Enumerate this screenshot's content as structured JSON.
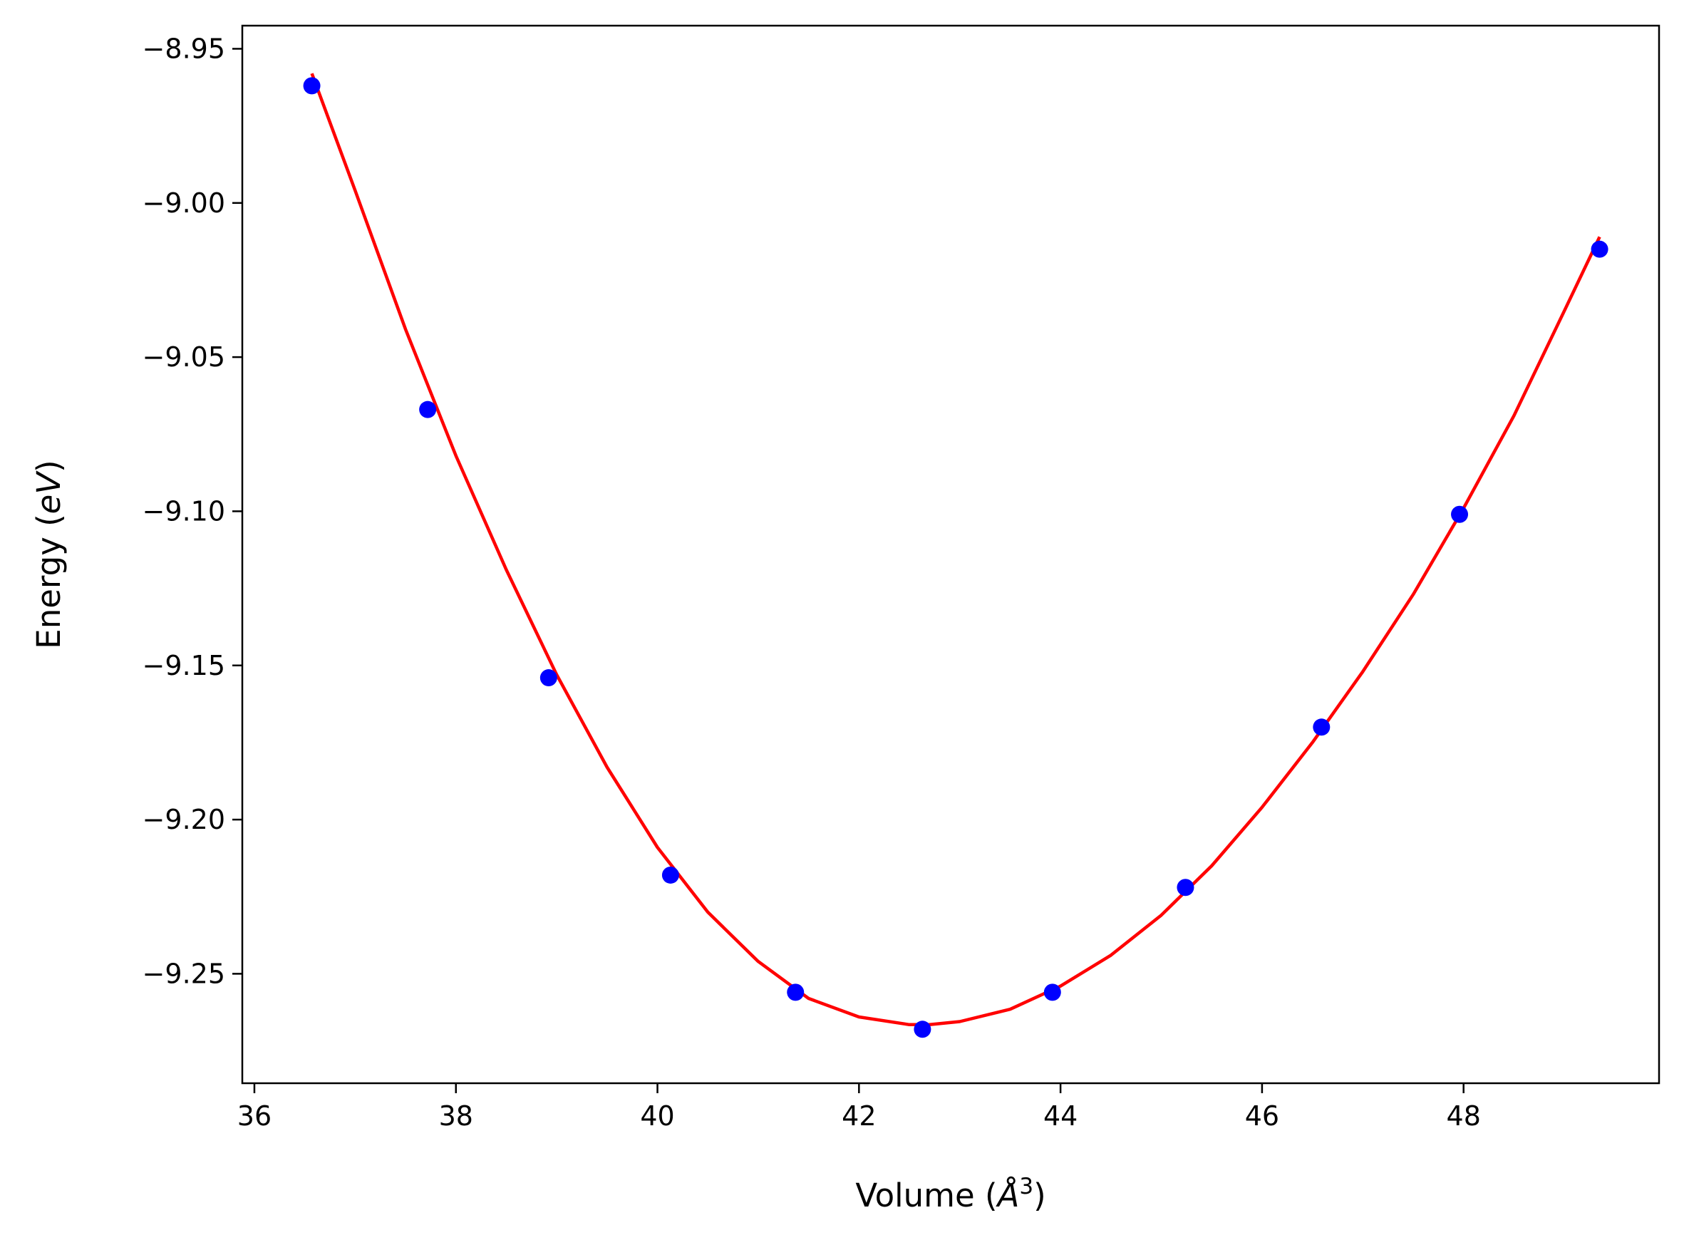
{
  "chart_data": {
    "type": "scatter",
    "title": "",
    "xlabel": {
      "prefix": "Volume (",
      "italic": "Å",
      "sup": "3",
      "suffix": ")"
    },
    "ylabel": {
      "prefix": "Energy (",
      "italic": "eV",
      "suffix": ")"
    },
    "xlim": [
      35.88,
      49.94
    ],
    "ylim": [
      -9.2855,
      -8.9425
    ],
    "xticks": [
      36,
      38,
      40,
      42,
      44,
      46,
      48
    ],
    "xtick_labels": [
      "36",
      "38",
      "40",
      "42",
      "44",
      "46",
      "48"
    ],
    "yticks": [
      -8.95,
      -9.0,
      -9.05,
      -9.1,
      -9.15,
      -9.2,
      -9.25
    ],
    "ytick_labels": [
      "−8.95",
      "−9.00",
      "−9.05",
      "−9.10",
      "−9.15",
      "−9.20",
      "−9.25"
    ],
    "grid": false,
    "series": [
      {
        "kind": "points",
        "color": "#0000ff",
        "x": [
          36.57,
          37.72,
          38.92,
          40.13,
          41.37,
          42.63,
          43.92,
          45.24,
          46.59,
          47.96,
          49.35
        ],
        "y": [
          -8.962,
          -9.067,
          -9.154,
          -9.218,
          -9.256,
          -9.268,
          -9.256,
          -9.222,
          -9.17,
          -9.101,
          -9.015
        ]
      },
      {
        "kind": "line",
        "color": "#ff0000",
        "x": [
          36.57,
          37.0,
          37.5,
          38.0,
          38.5,
          39.0,
          39.5,
          40.0,
          40.5,
          41.0,
          41.5,
          42.0,
          42.5,
          42.7,
          43.0,
          43.5,
          44.0,
          44.5,
          45.0,
          45.5,
          46.0,
          46.5,
          47.0,
          47.5,
          48.0,
          48.5,
          49.0,
          49.35
        ],
        "y": [
          -8.958,
          -8.996,
          -9.041,
          -9.082,
          -9.119,
          -9.153,
          -9.183,
          -9.209,
          -9.23,
          -9.246,
          -9.258,
          -9.264,
          -9.2665,
          -9.2665,
          -9.2655,
          -9.2615,
          -9.254,
          -9.244,
          -9.231,
          -9.215,
          -9.196,
          -9.175,
          -9.152,
          -9.127,
          -9.099,
          -9.069,
          -9.035,
          -9.011
        ]
      }
    ]
  }
}
